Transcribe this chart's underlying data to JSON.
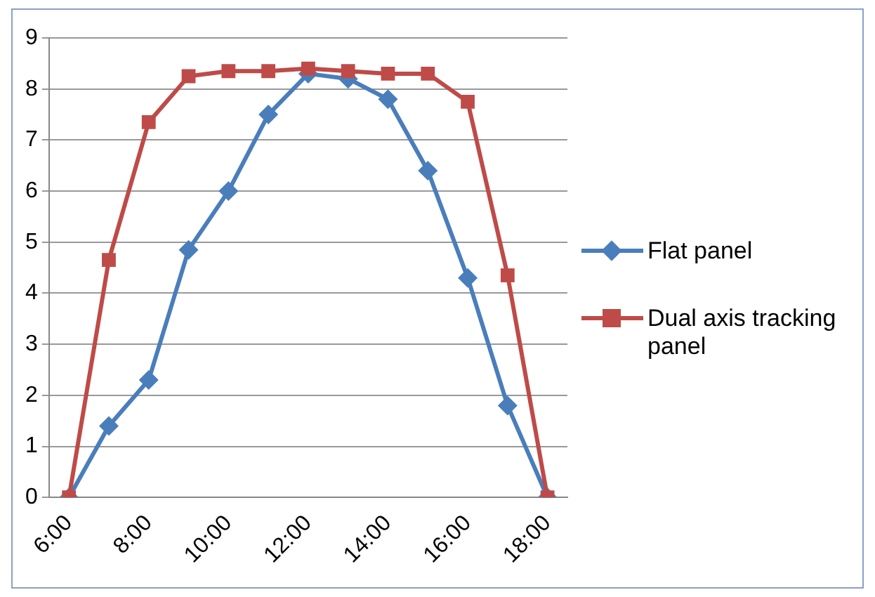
{
  "chart_data": {
    "type": "line",
    "categories": [
      "6:00",
      null,
      "8:00",
      null,
      "10:00",
      null,
      "12:00",
      null,
      "14:00",
      null,
      "16:00",
      null,
      "18:00"
    ],
    "series": [
      {
        "name": "Flat panel",
        "color": "#4a7ebb",
        "marker": "diamond",
        "values": [
          0,
          1.4,
          2.3,
          4.85,
          6.0,
          7.5,
          8.3,
          8.2,
          7.8,
          6.4,
          4.3,
          1.8,
          0
        ]
      },
      {
        "name": "Dual axis tracking panel",
        "color": "#be4b48",
        "marker": "square",
        "values": [
          0,
          4.65,
          7.35,
          8.25,
          8.35,
          8.35,
          8.4,
          8.35,
          8.3,
          8.3,
          7.75,
          4.35,
          0
        ]
      }
    ],
    "ylim": [
      0,
      9
    ],
    "yticks": [
      0,
      1,
      2,
      3,
      4,
      5,
      6,
      7,
      8,
      9
    ],
    "grid": "y",
    "legend": "right",
    "line_style": "solid"
  }
}
